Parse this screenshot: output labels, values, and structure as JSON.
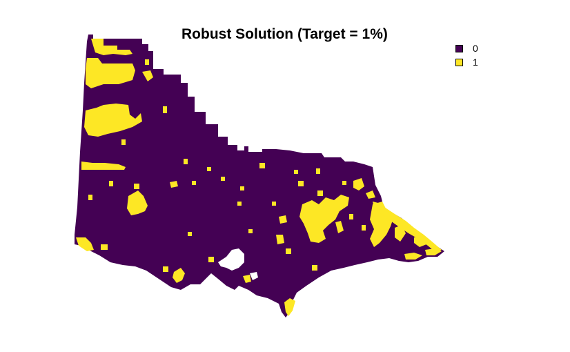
{
  "title": "Robust Solution (Target = 1%)",
  "legend": [
    {
      "label": "0",
      "color": "#440154"
    },
    {
      "label": "1",
      "color": "#fde725"
    }
  ],
  "colors": {
    "unselected": "#440154",
    "selected": "#fde725",
    "background": "#ffffff"
  }
}
